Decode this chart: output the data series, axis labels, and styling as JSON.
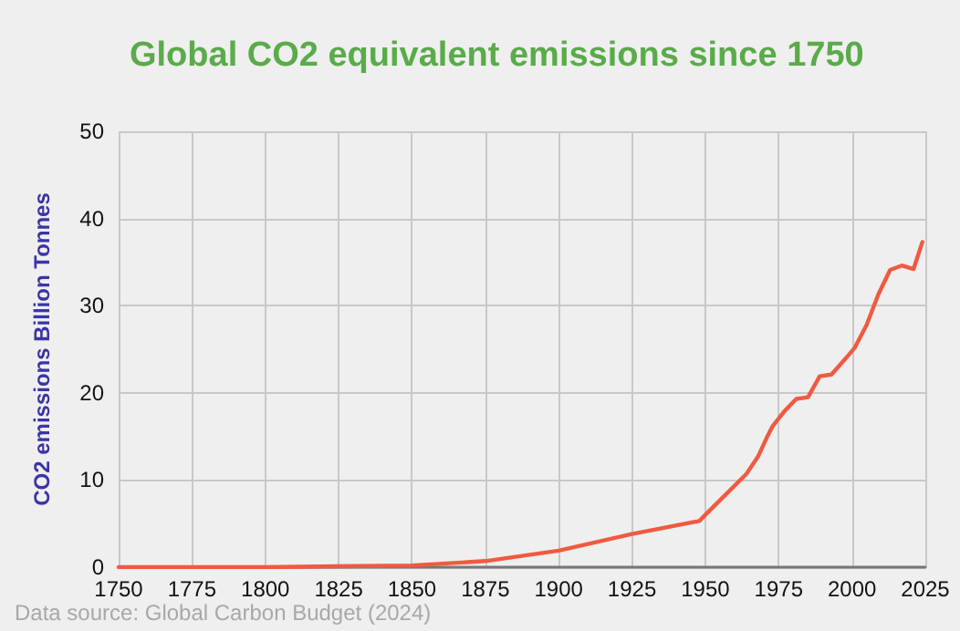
{
  "chart_data": {
    "type": "line",
    "title": "Global CO2 equivalent emissions since 1750",
    "ylabel": "CO2 emissions Billion Tonnes",
    "annotations": [
      "Data source: Global Carbon Budget (2024)"
    ],
    "x": [
      1750,
      1800,
      1825,
      1850,
      1875,
      1900,
      1925,
      1948,
      1950,
      1964,
      1968,
      1971,
      1973,
      1977,
      1981,
      1985,
      1989,
      1993,
      1998,
      2001,
      2005,
      2009,
      2013,
      2017,
      2021,
      2024
    ],
    "series": [
      {
        "color": "#f05a40",
        "values": [
          0,
          0,
          0.1,
          0.2,
          0.7,
          1.9,
          3.8,
          5.3,
          6.0,
          10.7,
          12.7,
          14.9,
          16.2,
          17.9,
          19.3,
          19.5,
          21.9,
          22.1,
          24,
          25.2,
          27.8,
          31.3,
          34.1,
          34.6,
          34.2,
          37.3
        ]
      }
    ],
    "xlim": [
      1750,
      2025
    ],
    "xticks": [
      1750,
      1775,
      1800,
      1825,
      1850,
      1875,
      1900,
      1925,
      1950,
      1975,
      2000,
      2025
    ],
    "ylim": [
      0,
      50
    ],
    "yticks": [
      0,
      10,
      20,
      30,
      40,
      50
    ],
    "grid": true,
    "marker": "none",
    "line_style": "solid"
  }
}
